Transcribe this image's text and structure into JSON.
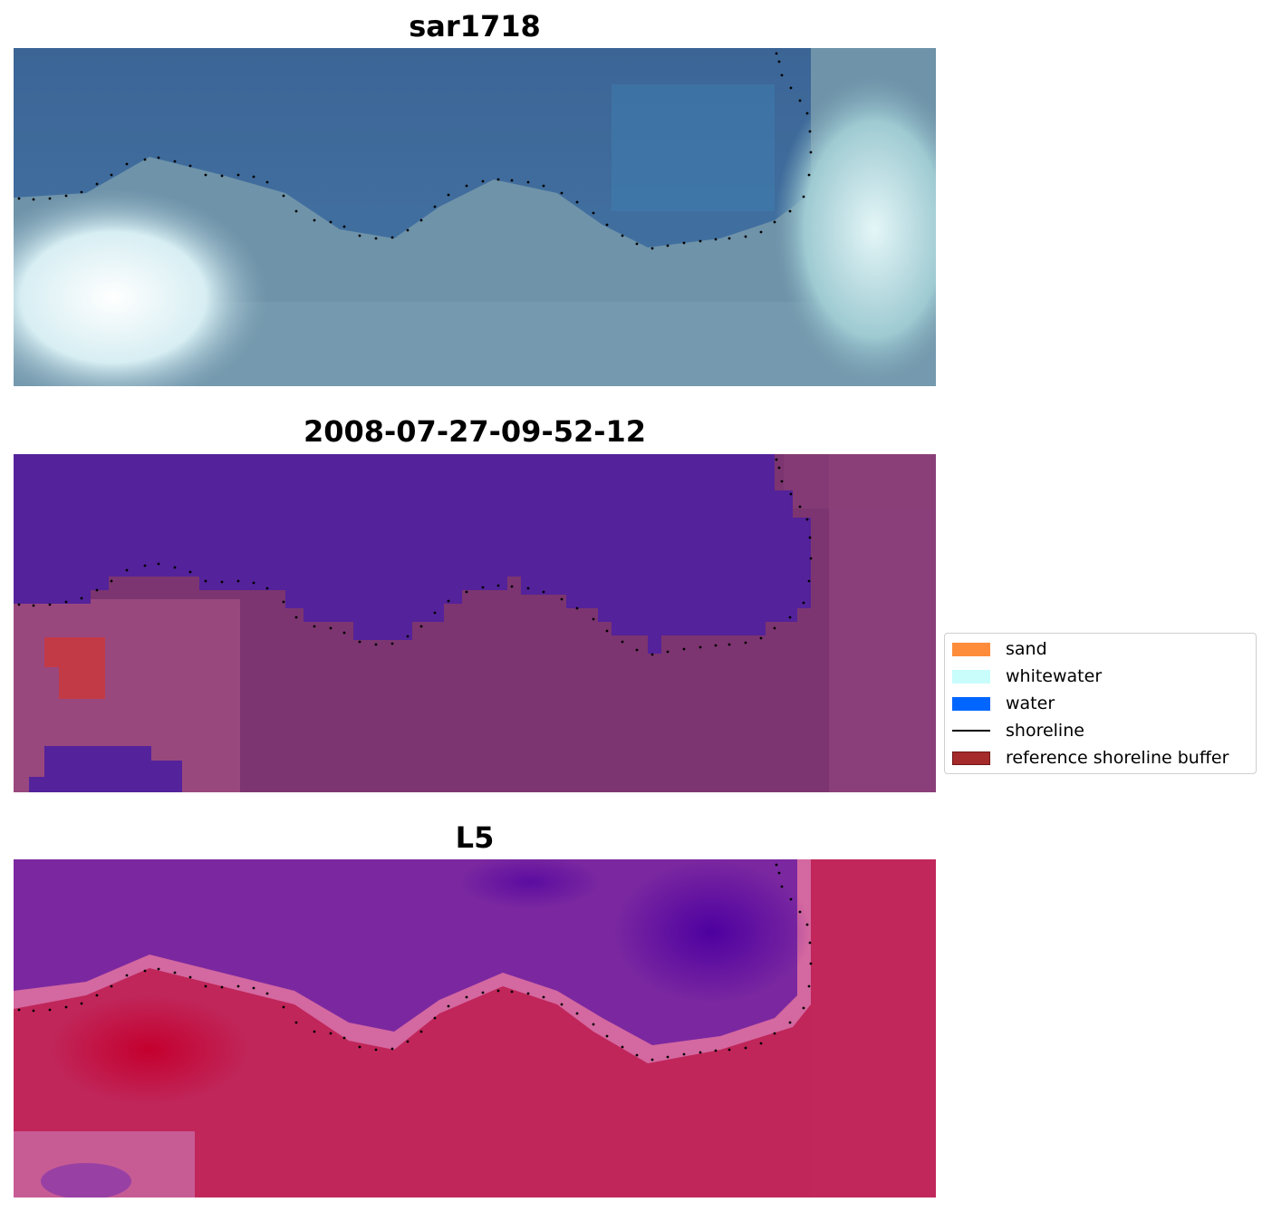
{
  "panels": [
    {
      "title": "sar1718"
    },
    {
      "title": "2008-07-27-09-52-12"
    },
    {
      "title": "L5"
    }
  ],
  "legend": {
    "items": [
      {
        "label": "sand",
        "color": "#ff8c3a",
        "kind": "patch"
      },
      {
        "label": "whitewater",
        "color": "#c8fdfb",
        "kind": "patch"
      },
      {
        "label": "water",
        "color": "#0066ff",
        "kind": "patch"
      },
      {
        "label": "shoreline",
        "color": "#000000",
        "kind": "line"
      },
      {
        "label": "reference shoreline buffer",
        "color": "#a52a2a",
        "kind": "patch"
      }
    ]
  },
  "colors": {
    "rgb_water": "#3d6a9c",
    "rgb_land": "#6a8fa6",
    "rgb_whitewater": "#dff3f5",
    "class_water": "#54229a",
    "class_land": "#7c3570",
    "class_buffer": "#c23a46",
    "mndwi_water": "#6a1a9e",
    "mndwi_land": "#c0265a",
    "mndwi_mid": "#d0609a",
    "shoreline_dots": "#000000"
  }
}
